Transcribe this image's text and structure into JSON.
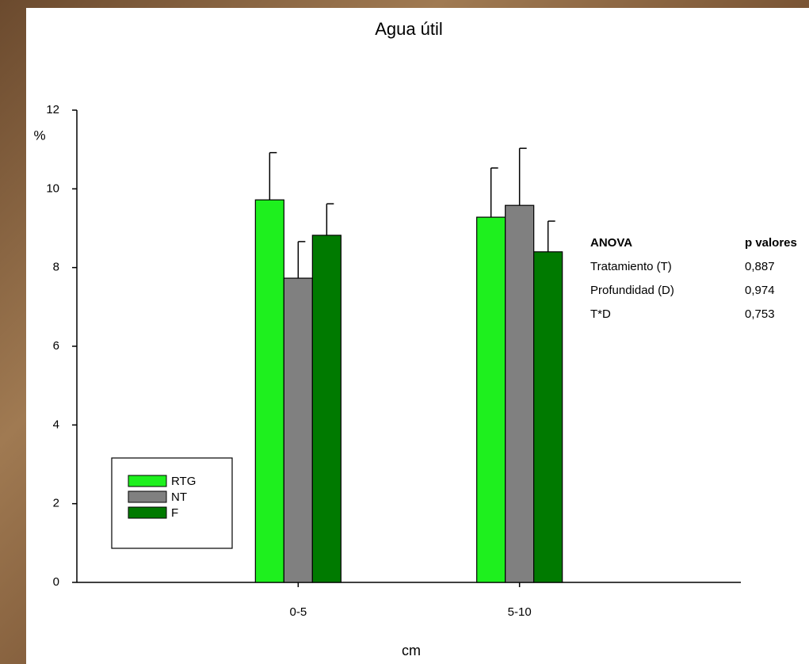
{
  "chart_data": {
    "type": "bar",
    "title": "Agua útil",
    "y_label": "%",
    "x_label": "cm",
    "categories": [
      "0-5",
      "5-10"
    ],
    "series": [
      {
        "name": "RTG",
        "color": "#1ef01e",
        "values": [
          9.72,
          9.28
        ],
        "errors": [
          1.2,
          1.25
        ]
      },
      {
        "name": "NT",
        "color": "#808080",
        "values": [
          7.73,
          9.58
        ],
        "errors": [
          0.93,
          1.45
        ]
      },
      {
        "name": "F",
        "color": "#007a00",
        "values": [
          8.82,
          8.4
        ],
        "errors": [
          0.8,
          0.78
        ]
      }
    ],
    "ylim": [
      0,
      12
    ],
    "yticks": [
      0,
      2,
      4,
      6,
      8,
      10,
      12
    ],
    "legend": "lower left",
    "anova": {
      "header": [
        "ANOVA",
        "p valores"
      ],
      "rows": [
        [
          "Tratamiento (T)",
          "0,887"
        ],
        [
          "Profundidad (D)",
          "0,974"
        ],
        [
          "T*D",
          "0,753"
        ]
      ]
    }
  }
}
